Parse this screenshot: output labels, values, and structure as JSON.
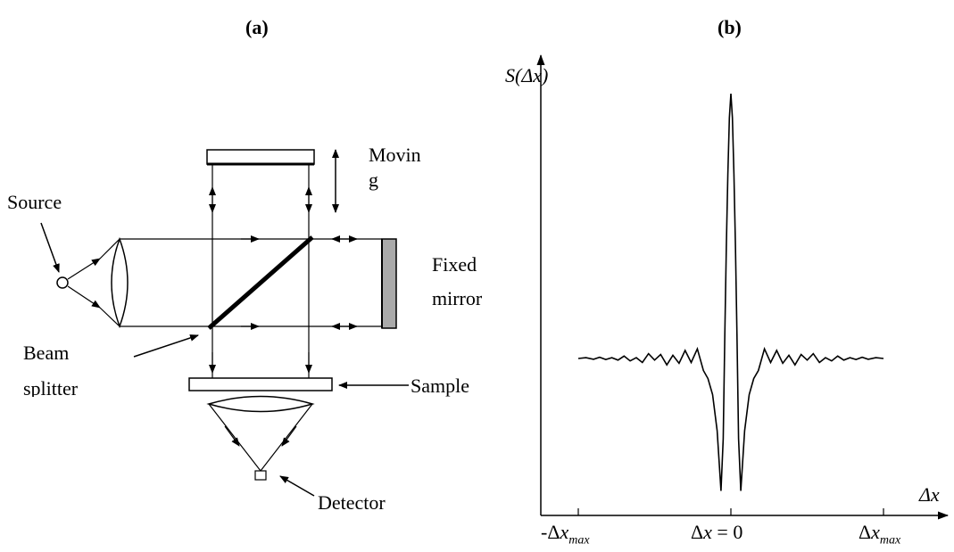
{
  "panel_a": {
    "tag": "(a)",
    "labels": {
      "moving_1": "Movin",
      "moving_2": "g",
      "source": "Source",
      "fixed_1": "Fixed",
      "fixed_2": "mirror",
      "beam_1": "Beam",
      "beam_2": "splitter",
      "sample": "Sample",
      "detector": "Detector"
    }
  },
  "panel_b": {
    "tag": "(b)",
    "y_axis_label": "S(Δx)",
    "x_axis_label": "Δx",
    "ticks": [
      "-Δx_max",
      "Δx = 0",
      "Δx_max"
    ]
  },
  "chart_data": {
    "type": "line",
    "title": "",
    "xlabel": "Δx",
    "ylabel": "S(Δx)",
    "xlim": [
      -1,
      1
    ],
    "x_ticks": [
      -1,
      0,
      1
    ],
    "x_tick_labels": [
      "-Δx_max",
      "Δx = 0",
      "Δx_max"
    ],
    "series": [
      {
        "x": [
          -1.0,
          -0.95,
          -0.9,
          -0.86,
          -0.82,
          -0.78,
          -0.74,
          -0.7,
          -0.66,
          -0.62,
          -0.58,
          -0.54,
          -0.5,
          -0.46,
          -0.42,
          -0.38,
          -0.34,
          -0.3,
          -0.26,
          -0.22,
          -0.18,
          -0.15,
          -0.12,
          -0.09,
          -0.065,
          -0.05,
          -0.04,
          -0.03,
          -0.02,
          -0.01,
          0.0,
          0.01,
          0.02,
          0.03,
          0.04,
          0.05,
          0.065,
          0.09,
          0.12,
          0.15,
          0.18,
          0.22,
          0.26,
          0.3,
          0.34,
          0.38,
          0.42,
          0.46,
          0.5,
          0.54,
          0.58,
          0.62,
          0.66,
          0.7,
          0.74,
          0.78,
          0.82,
          0.86,
          0.9,
          0.95,
          1.0
        ],
        "y": [
          0.0,
          0.01,
          -0.01,
          0.015,
          -0.012,
          0.01,
          -0.02,
          0.03,
          -0.03,
          0.01,
          -0.05,
          0.06,
          -0.02,
          0.05,
          -0.08,
          0.04,
          -0.06,
          0.1,
          -0.05,
          0.12,
          -0.15,
          -0.25,
          -0.45,
          -0.9,
          -1.65,
          -1.0,
          0.3,
          1.4,
          2.3,
          3.0,
          3.3,
          3.0,
          2.3,
          1.4,
          0.3,
          -1.0,
          -1.65,
          -0.9,
          -0.45,
          -0.25,
          -0.15,
          0.12,
          -0.05,
          0.1,
          -0.06,
          0.04,
          -0.08,
          0.05,
          -0.02,
          0.06,
          -0.05,
          0.01,
          -0.03,
          0.03,
          -0.02,
          0.01,
          -0.012,
          0.015,
          -0.01,
          0.01,
          0.0
        ]
      }
    ]
  }
}
